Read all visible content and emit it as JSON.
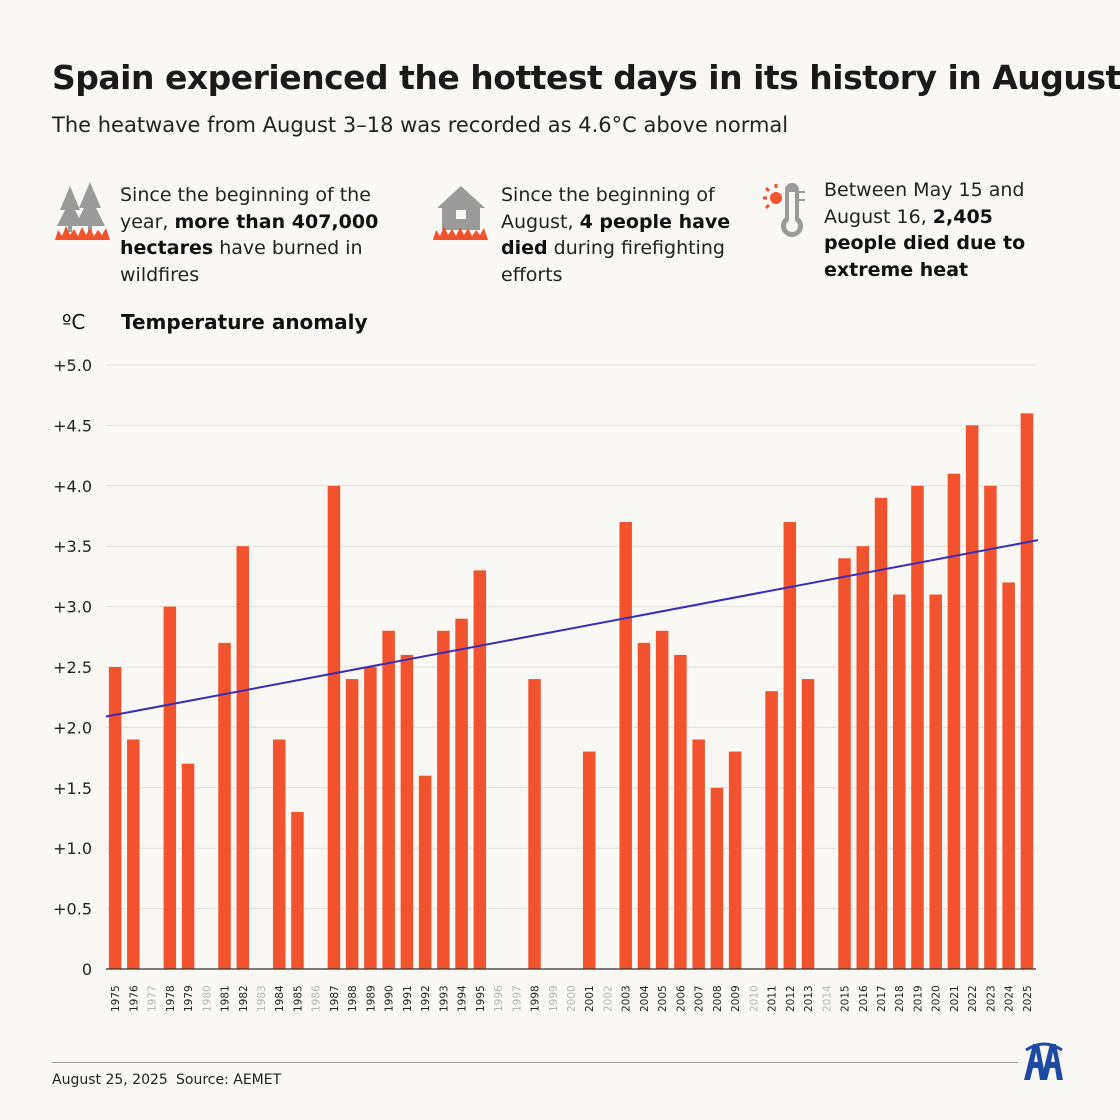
{
  "title": "Spain experienced the hottest days in its history in August",
  "subtitle": "The heatwave from August 3–18 was recorded as 4.6°C above normal",
  "stats": [
    {
      "icon": "forest-fire-icon",
      "pre": "Since the beginning of the year, ",
      "bold": "more than 407,000 hectares",
      "post": " have burned in wildfires"
    },
    {
      "icon": "house-fire-icon",
      "pre": "Since the beginning of August, ",
      "bold": "4 people have died",
      "post": " during firefighting efforts"
    },
    {
      "icon": "thermometer-sun-icon",
      "pre": "Between May 15 and August 16, ",
      "bold": "2,405 people died due to extreme heat",
      "post": ""
    }
  ],
  "axis": {
    "unit": "ºC",
    "label": "Temperature anomaly"
  },
  "footer": {
    "date": "August 25, 2025",
    "source": "Source: AEMET",
    "logo": "aa-logo-icon"
  },
  "colors": {
    "bar": "#f0532e",
    "trend": "#3a2db4",
    "grid": "#e2e0dc",
    "muted_year": "#b5b5b5"
  },
  "chart_data": {
    "type": "bar",
    "title": "Temperature anomaly",
    "ylabel": "ºC",
    "ylim": [
      0,
      5.0
    ],
    "yticks": [
      "0",
      "+0.5",
      "+1.0",
      "+1.5",
      "+2.0",
      "+2.5",
      "+3.0",
      "+3.5",
      "+4.0",
      "+4.5",
      "+5.0"
    ],
    "categories": [
      "1975",
      "1976",
      "1977",
      "1978",
      "1979",
      "1980",
      "1981",
      "1982",
      "1983",
      "1984",
      "1985",
      "1986",
      "1987",
      "1988",
      "1989",
      "1990",
      "1991",
      "1992",
      "1993",
      "1994",
      "1995",
      "1996",
      "1997",
      "1998",
      "1999",
      "2000",
      "2001",
      "2002",
      "2003",
      "2004",
      "2005",
      "2006",
      "2007",
      "2008",
      "2009",
      "2010",
      "2011",
      "2012",
      "2013",
      "2014",
      "2015",
      "2016",
      "2017",
      "2018",
      "2019",
      "2020",
      "2021",
      "2022",
      "2023",
      "2024",
      "2025"
    ],
    "values": [
      2.5,
      1.9,
      null,
      3.0,
      1.7,
      null,
      2.7,
      3.5,
      null,
      1.9,
      1.3,
      null,
      4.0,
      2.4,
      2.5,
      2.8,
      2.6,
      1.6,
      2.8,
      2.9,
      3.3,
      null,
      null,
      2.4,
      null,
      null,
      1.8,
      null,
      3.7,
      2.7,
      2.8,
      2.6,
      1.9,
      1.5,
      1.8,
      null,
      2.3,
      3.7,
      2.4,
      null,
      3.4,
      3.5,
      3.9,
      3.1,
      4.0,
      3.1,
      4.1,
      4.5,
      4.0,
      3.2,
      4.6
    ],
    "trend": {
      "start": 2.09,
      "end": 3.55
    }
  }
}
